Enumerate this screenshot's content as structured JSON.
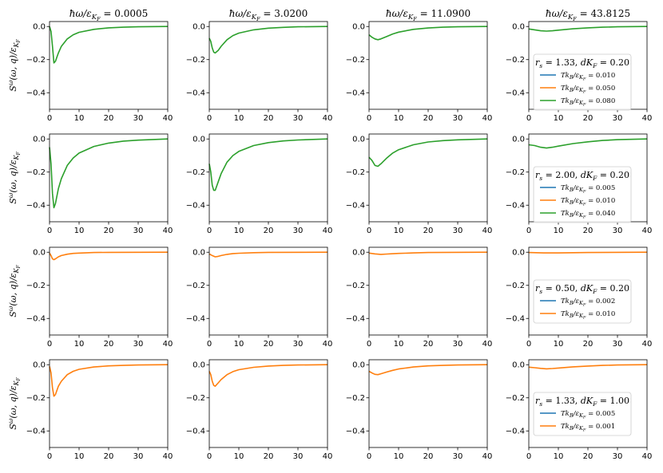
{
  "chart_data": {
    "type": "line",
    "ylabel": "S^ω(ω,q)/ε_{K_F}",
    "ylabel_parts": {
      "base": "S",
      "sup": "ω",
      "args": "(ω, q)/ε",
      "sub": "K",
      "subsub": "F"
    },
    "xlim": [
      0,
      40
    ],
    "ylim": [
      -0.5,
      0.03
    ],
    "xticks": [
      0,
      10,
      20,
      30,
      40
    ],
    "xtick_labels": [
      "0",
      "10",
      "20",
      "30",
      "40"
    ],
    "yticks": [
      0.0,
      -0.2,
      -0.4
    ],
    "ytick_labels": [
      "0.0",
      "−0.2",
      "−0.4"
    ],
    "colors": {
      "blue": "#1f77b4",
      "orange": "#ff7f0e",
      "green": "#2ca02c"
    },
    "column_titles": [
      {
        "label": "ħω/ε",
        "sub": "K",
        "subsub": "F",
        "value": "= 0.0005"
      },
      {
        "label": "ħω/ε",
        "sub": "K",
        "subsub": "F",
        "value": "= 3.0200"
      },
      {
        "label": "ħω/ε",
        "sub": "K",
        "subsub": "F",
        "value": "= 11.0900"
      },
      {
        "label": "ħω/ε",
        "sub": "K",
        "subsub": "F",
        "value": "= 43.8125"
      }
    ],
    "rows": [
      {
        "legend": {
          "title_rs": "r",
          "title_rs_sub": "s",
          "title_rs_val": "= 1.33,",
          "title_dk": "dK",
          "title_dk_sub": "F",
          "title_dk_val": "= 0.20",
          "entries": [
            {
              "label": "Tk",
              "sub1": "B",
              "mid": "/ε",
              "sub2": "K",
              "subsub": "F",
              "value": "= 0.010",
              "color": "#1f77b4"
            },
            {
              "label": "Tk",
              "sub1": "B",
              "mid": "/ε",
              "sub2": "K",
              "subsub": "F",
              "value": "= 0.050",
              "color": "#ff7f0e"
            },
            {
              "label": "Tk",
              "sub1": "B",
              "mid": "/ε",
              "sub2": "K",
              "subsub": "F",
              "value": "= 0.080",
              "color": "#2ca02c"
            }
          ]
        },
        "top_color": "#2ca02c",
        "panels": [
          {
            "x": [
              0,
              0.5,
              1,
              1.5,
              2,
              3,
              4,
              6,
              8,
              10,
              15,
              20,
              25,
              30,
              40
            ],
            "y": [
              0,
              -0.03,
              -0.12,
              -0.22,
              -0.21,
              -0.16,
              -0.12,
              -0.075,
              -0.05,
              -0.035,
              -0.017,
              -0.008,
              -0.004,
              -0.002,
              0
            ]
          },
          {
            "x": [
              0,
              0.5,
              1,
              1.5,
              2,
              3,
              4,
              6,
              8,
              10,
              15,
              20,
              25,
              30,
              40
            ],
            "y": [
              -0.07,
              -0.09,
              -0.13,
              -0.155,
              -0.16,
              -0.145,
              -0.12,
              -0.08,
              -0.055,
              -0.04,
              -0.02,
              -0.01,
              -0.005,
              -0.002,
              0
            ]
          },
          {
            "x": [
              0,
              1,
              2,
              3,
              4,
              6,
              8,
              10,
              15,
              20,
              25,
              30,
              40
            ],
            "y": [
              -0.05,
              -0.065,
              -0.075,
              -0.08,
              -0.075,
              -0.06,
              -0.045,
              -0.034,
              -0.017,
              -0.009,
              -0.004,
              -0.002,
              0
            ]
          },
          {
            "x": [
              0,
              2,
              4,
              6,
              8,
              10,
              15,
              20,
              25,
              30,
              40
            ],
            "y": [
              -0.015,
              -0.02,
              -0.026,
              -0.028,
              -0.026,
              -0.022,
              -0.014,
              -0.008,
              -0.004,
              -0.002,
              0
            ]
          }
        ]
      },
      {
        "legend": {
          "title_rs": "r",
          "title_rs_sub": "s",
          "title_rs_val": "= 2.00,",
          "title_dk": "dK",
          "title_dk_sub": "F",
          "title_dk_val": "= 0.20",
          "entries": [
            {
              "label": "Tk",
              "sub1": "B",
              "mid": "/ε",
              "sub2": "K",
              "subsub": "F",
              "value": "= 0.005",
              "color": "#1f77b4"
            },
            {
              "label": "Tk",
              "sub1": "B",
              "mid": "/ε",
              "sub2": "K",
              "subsub": "F",
              "value": "= 0.010",
              "color": "#ff7f0e"
            },
            {
              "label": "Tk",
              "sub1": "B",
              "mid": "/ε",
              "sub2": "K",
              "subsub": "F",
              "value": "= 0.040",
              "color": "#2ca02c"
            }
          ]
        },
        "top_color": "#2ca02c",
        "panels": [
          {
            "x": [
              0,
              0.5,
              1,
              1.5,
              2,
              3,
              4,
              6,
              8,
              10,
              15,
              20,
              25,
              30,
              40
            ],
            "y": [
              -0.05,
              -0.15,
              -0.33,
              -0.415,
              -0.39,
              -0.3,
              -0.24,
              -0.16,
              -0.115,
              -0.085,
              -0.045,
              -0.025,
              -0.013,
              -0.007,
              0
            ]
          },
          {
            "x": [
              0,
              0.5,
              1,
              1.5,
              2,
              3,
              4,
              6,
              8,
              10,
              15,
              20,
              25,
              30,
              40
            ],
            "y": [
              -0.15,
              -0.2,
              -0.28,
              -0.31,
              -0.31,
              -0.26,
              -0.21,
              -0.14,
              -0.1,
              -0.075,
              -0.04,
              -0.022,
              -0.012,
              -0.006,
              0
            ]
          },
          {
            "x": [
              0,
              1,
              2,
              3,
              4,
              6,
              8,
              10,
              15,
              20,
              25,
              30,
              40
            ],
            "y": [
              -0.11,
              -0.13,
              -0.16,
              -0.165,
              -0.15,
              -0.115,
              -0.085,
              -0.065,
              -0.035,
              -0.018,
              -0.01,
              -0.005,
              0
            ]
          },
          {
            "x": [
              0,
              2,
              4,
              6,
              8,
              10,
              15,
              20,
              25,
              30,
              40
            ],
            "y": [
              -0.035,
              -0.04,
              -0.05,
              -0.055,
              -0.05,
              -0.043,
              -0.028,
              -0.017,
              -0.009,
              -0.004,
              0
            ]
          }
        ]
      },
      {
        "legend": {
          "title_rs": "r",
          "title_rs_sub": "s",
          "title_rs_val": "= 0.50,",
          "title_dk": "dK",
          "title_dk_sub": "F",
          "title_dk_val": "= 0.20",
          "entries": [
            {
              "label": "Tk",
              "sub1": "B",
              "mid": "/ε",
              "sub2": "K",
              "subsub": "F",
              "value": "= 0.002",
              "color": "#1f77b4"
            },
            {
              "label": "Tk",
              "sub1": "B",
              "mid": "/ε",
              "sub2": "K",
              "subsub": "F",
              "value": "= 0.010",
              "color": "#ff7f0e"
            }
          ]
        },
        "top_color": "#ff7f0e",
        "panels": [
          {
            "x": [
              0,
              0.5,
              1,
              1.5,
              2,
              3,
              4,
              6,
              8,
              10,
              15,
              20,
              40
            ],
            "y": [
              -0.005,
              -0.02,
              -0.04,
              -0.045,
              -0.04,
              -0.028,
              -0.02,
              -0.012,
              -0.007,
              -0.005,
              -0.002,
              -0.001,
              0
            ]
          },
          {
            "x": [
              0,
              1,
              2,
              3,
              4,
              6,
              8,
              10,
              15,
              20,
              40
            ],
            "y": [
              -0.01,
              -0.02,
              -0.028,
              -0.025,
              -0.02,
              -0.013,
              -0.008,
              -0.006,
              -0.003,
              -0.001,
              0
            ]
          },
          {
            "x": [
              0,
              2,
              4,
              6,
              8,
              10,
              15,
              20,
              40
            ],
            "y": [
              -0.005,
              -0.01,
              -0.013,
              -0.011,
              -0.009,
              -0.007,
              -0.004,
              -0.002,
              0
            ]
          },
          {
            "x": [
              0,
              5,
              10,
              20,
              40
            ],
            "y": [
              -0.002,
              -0.004,
              -0.004,
              -0.002,
              0
            ]
          }
        ]
      },
      {
        "legend": {
          "title_rs": "r",
          "title_rs_sub": "s",
          "title_rs_val": "= 1.33,",
          "title_dk": "dK",
          "title_dk_sub": "F",
          "title_dk_val": "= 1.00",
          "entries": [
            {
              "label": "Tk",
              "sub1": "B",
              "mid": "/ε",
              "sub2": "K",
              "subsub": "F",
              "value": "= 0.005",
              "color": "#1f77b4"
            },
            {
              "label": "Tk",
              "sub1": "B",
              "mid": "/ε",
              "sub2": "K",
              "subsub": "F",
              "value": "= 0.001",
              "color": "#ff7f0e"
            }
          ]
        },
        "top_color": "#ff7f0e",
        "panels": [
          {
            "x": [
              0,
              0.5,
              1,
              1.5,
              2,
              3,
              4,
              6,
              8,
              10,
              15,
              20,
              25,
              30,
              40
            ],
            "y": [
              -0.01,
              -0.05,
              -0.14,
              -0.19,
              -0.18,
              -0.13,
              -0.1,
              -0.06,
              -0.04,
              -0.028,
              -0.014,
              -0.007,
              -0.004,
              -0.002,
              0
            ]
          },
          {
            "x": [
              0,
              0.5,
              1,
              1.5,
              2,
              3,
              4,
              6,
              8,
              10,
              15,
              20,
              25,
              30,
              40
            ],
            "y": [
              -0.04,
              -0.06,
              -0.1,
              -0.125,
              -0.13,
              -0.11,
              -0.09,
              -0.06,
              -0.042,
              -0.03,
              -0.016,
              -0.008,
              -0.004,
              -0.002,
              0
            ]
          },
          {
            "x": [
              0,
              1,
              2,
              3,
              4,
              6,
              8,
              10,
              15,
              20,
              25,
              30,
              40
            ],
            "y": [
              -0.04,
              -0.05,
              -0.058,
              -0.06,
              -0.055,
              -0.044,
              -0.034,
              -0.026,
              -0.014,
              -0.007,
              -0.004,
              -0.002,
              0
            ]
          },
          {
            "x": [
              0,
              2,
              4,
              6,
              8,
              10,
              15,
              20,
              25,
              30,
              40
            ],
            "y": [
              -0.015,
              -0.018,
              -0.022,
              -0.025,
              -0.023,
              -0.02,
              -0.013,
              -0.008,
              -0.004,
              -0.002,
              0
            ]
          }
        ]
      }
    ]
  }
}
